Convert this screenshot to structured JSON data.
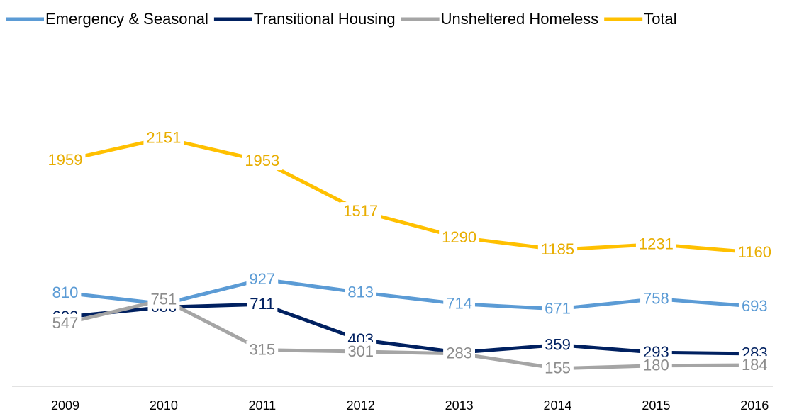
{
  "chart_data": {
    "type": "line",
    "categories": [
      "2009",
      "2010",
      "2011",
      "2012",
      "2013",
      "2014",
      "2015",
      "2016"
    ],
    "series": [
      {
        "name": "Emergency & Seasonal",
        "color": "#5b9bd5",
        "values": [
          810,
          714,
          927,
          813,
          714,
          671,
          758,
          693
        ]
      },
      {
        "name": "Transitional Housing",
        "color": "#002060",
        "values": [
          602,
          686,
          711,
          403,
          293,
          359,
          293,
          283
        ]
      },
      {
        "name": "Unsheltered Homeless",
        "color": "#a5a5a5",
        "values": [
          547,
          751,
          315,
          301,
          283,
          155,
          180,
          184
        ]
      },
      {
        "name": "Total",
        "color": "#ffc000",
        "values": [
          1959,
          2151,
          1953,
          1517,
          1290,
          1185,
          1231,
          1160
        ]
      }
    ],
    "ylim": [
      0,
      2500
    ],
    "legend": "top"
  }
}
